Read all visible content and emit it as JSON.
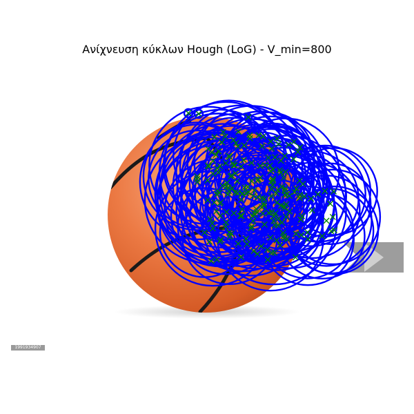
{
  "figure": {
    "title": "Ανίχνευση κύκλων Hough (LoG) - V_min=800",
    "photo_watermark": "1991934907"
  },
  "colors": {
    "circle": "#0000ff",
    "marker": "#008000",
    "ball_light": "#f58a5a",
    "ball_mid": "#e86a33",
    "ball_dark": "#b94a1c",
    "seam": "#1a1a1a",
    "overlay_gray": "#8c8c8c"
  }
}
